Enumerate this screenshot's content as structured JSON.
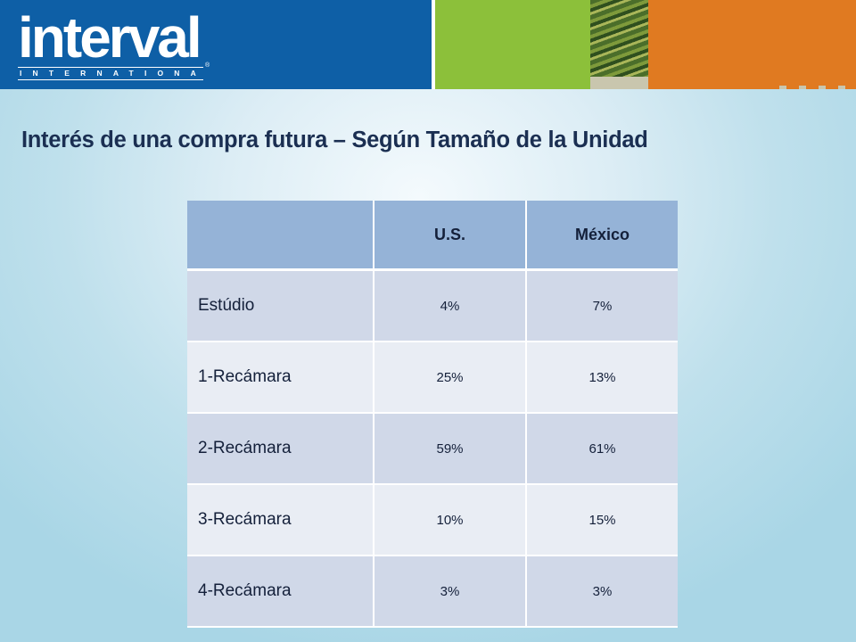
{
  "header": {
    "logo_word": "interval",
    "logo_sub": "INTERNATIONAL",
    "logo_reg": "®",
    "colors": {
      "blue": "#0e5fa6",
      "green": "#8cc03a",
      "orange": "#e07a21"
    }
  },
  "title": "Interés de una compra futura – Según Tamaño de la Unidad",
  "table": {
    "columns": [
      "",
      "U.S.",
      "México"
    ],
    "rows": [
      {
        "label": "Estúdio",
        "us": "4%",
        "mexico": "7%"
      },
      {
        "label": "1-Recámara",
        "us": "25%",
        "mexico": "13%"
      },
      {
        "label": "2-Recámara",
        "us": "59%",
        "mexico": "61%"
      },
      {
        "label": "3-Recámara",
        "us": "10%",
        "mexico": "15%"
      },
      {
        "label": "4-Recámara",
        "us": "3%",
        "mexico": "3%"
      }
    ]
  }
}
